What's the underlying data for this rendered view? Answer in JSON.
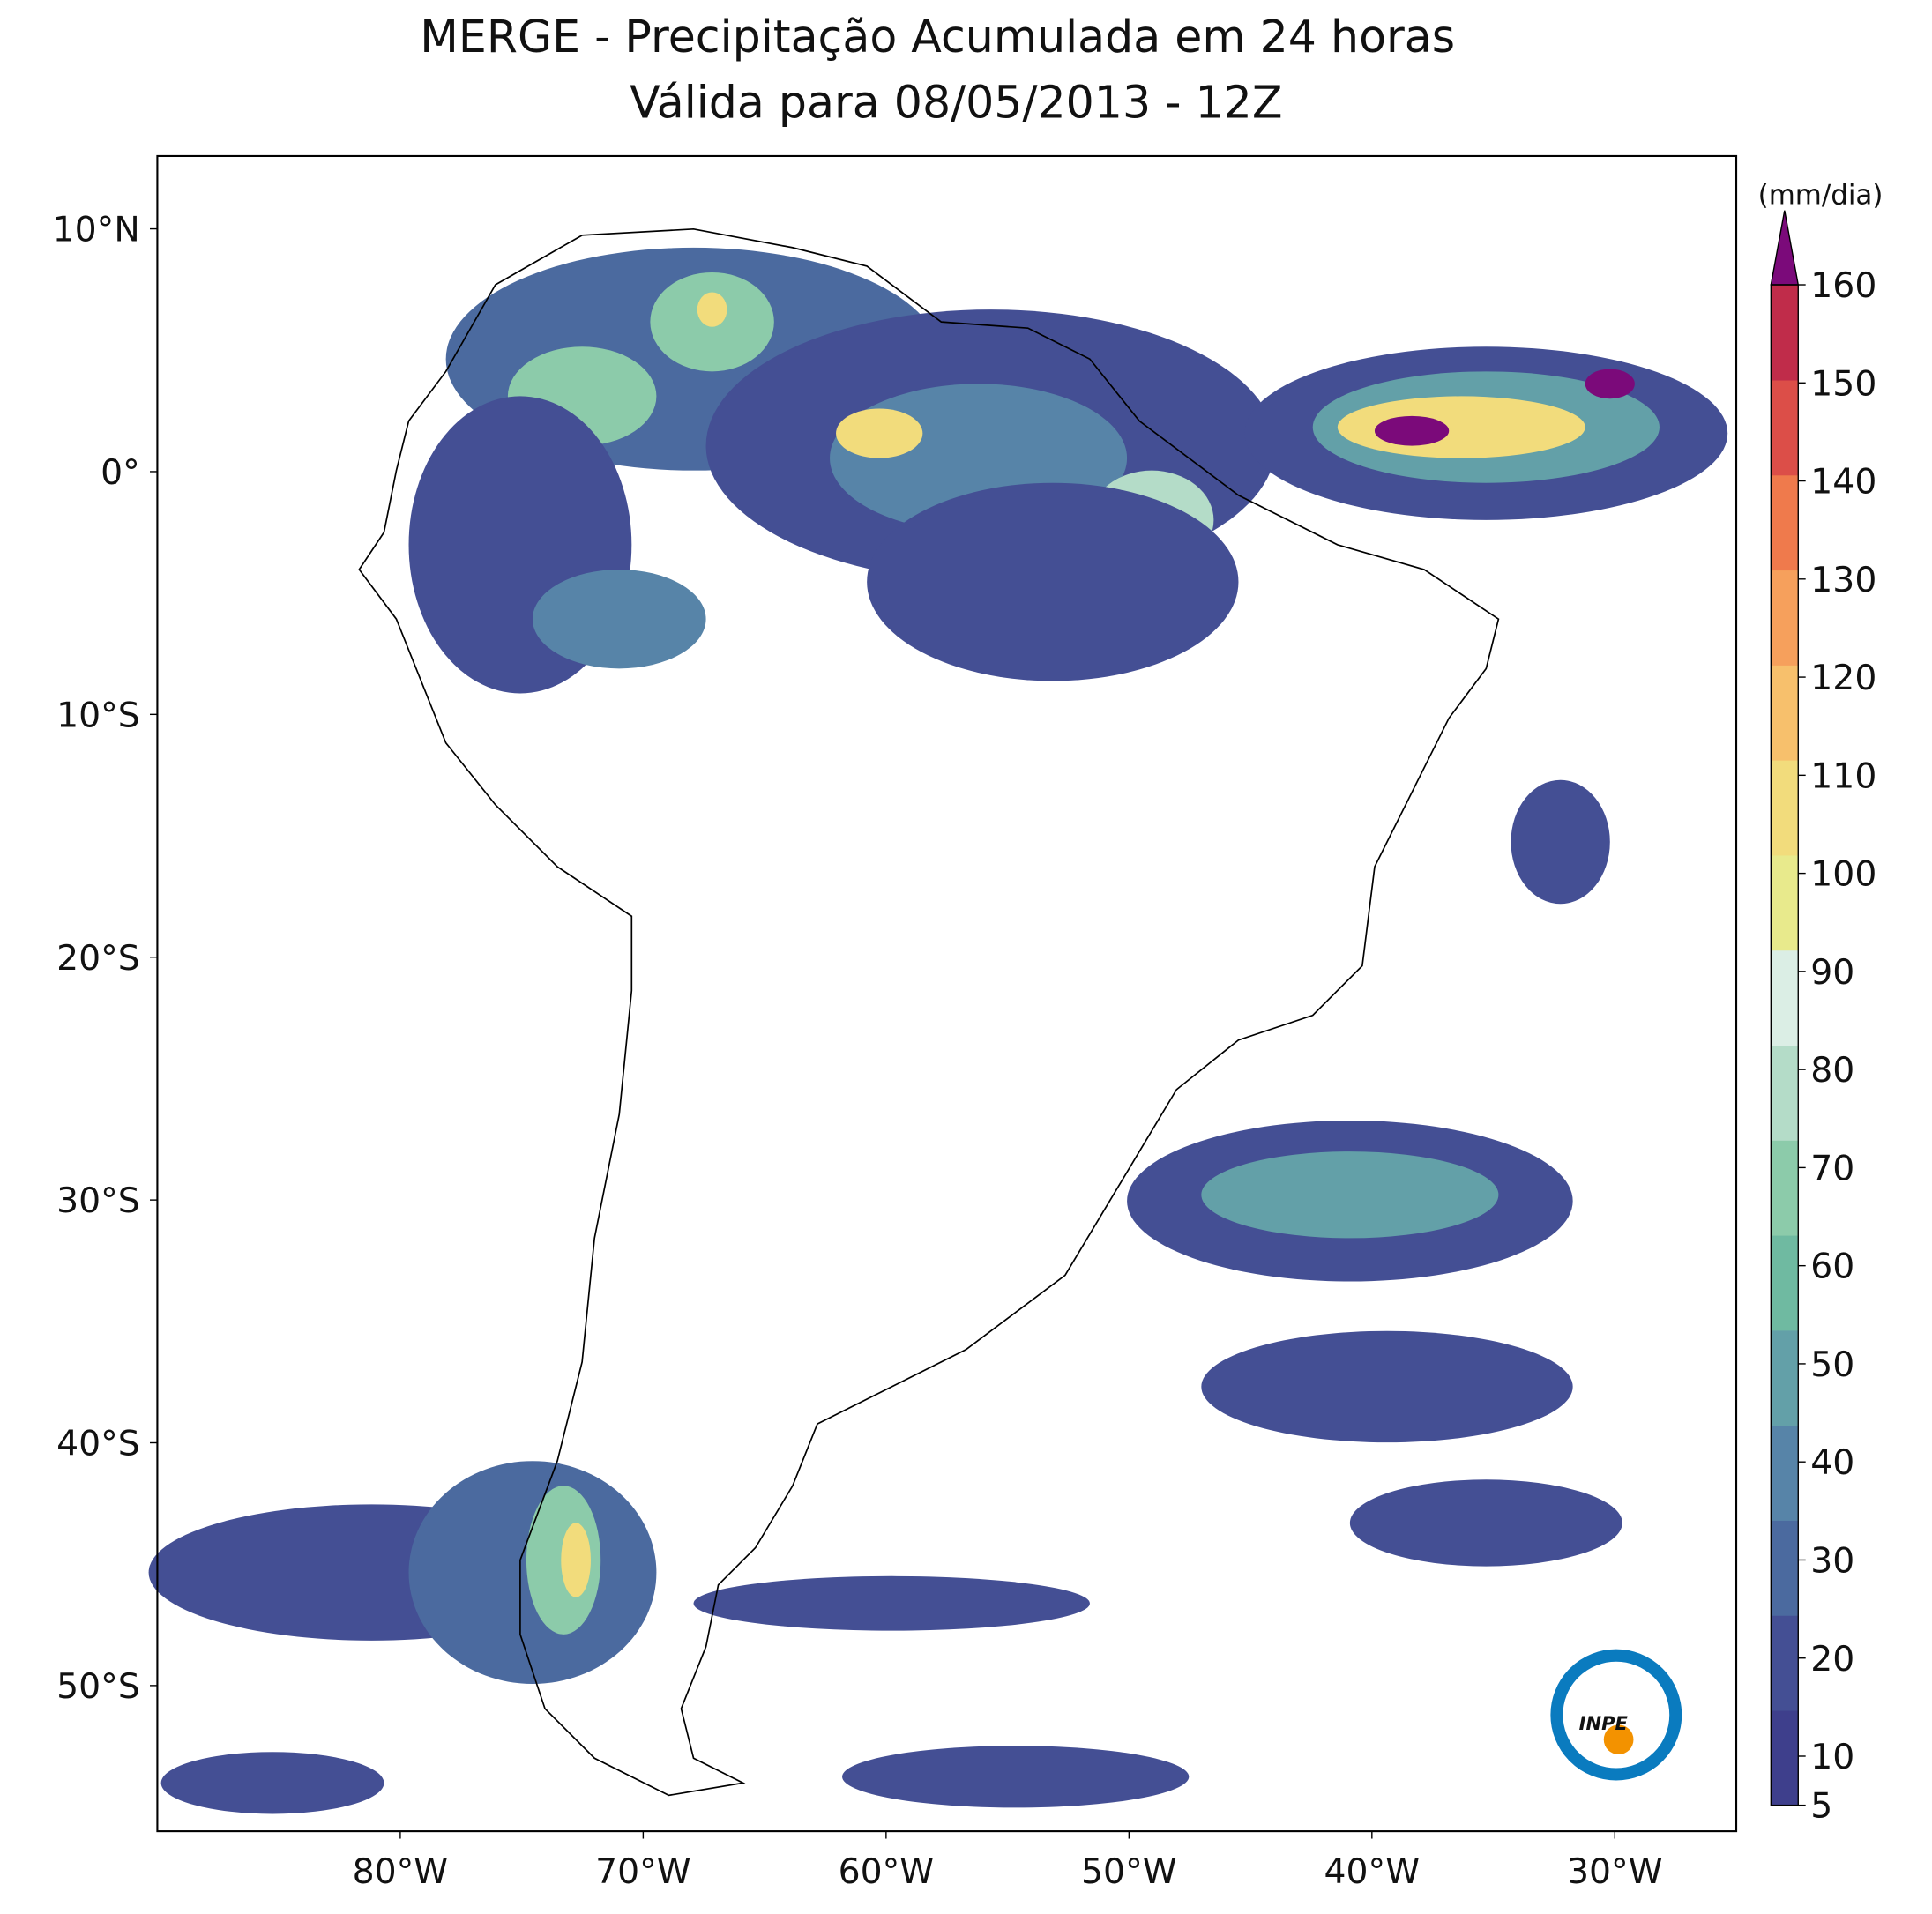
{
  "chart_data": {
    "type": "map",
    "title": "MERGE - Precipitação Acumulada em 24 horas",
    "subtitle": "Válida para 08/05/2013 - 12Z",
    "xlim": [
      -90,
      -25
    ],
    "ylim": [
      -56,
      13
    ],
    "xticks": [
      {
        "value": -80,
        "label": "80°W"
      },
      {
        "value": -70,
        "label": "70°W"
      },
      {
        "value": -60,
        "label": "60°W"
      },
      {
        "value": -50,
        "label": "50°W"
      },
      {
        "value": -40,
        "label": "40°W"
      },
      {
        "value": -30,
        "label": "30°W"
      }
    ],
    "yticks": [
      {
        "value": 10,
        "label": "10°N"
      },
      {
        "value": 0,
        "label": "0°"
      },
      {
        "value": -10,
        "label": "10°S"
      },
      {
        "value": -20,
        "label": "20°S"
      },
      {
        "value": -30,
        "label": "30°S"
      },
      {
        "value": -40,
        "label": "40°S"
      },
      {
        "value": -50,
        "label": "50°S"
      }
    ],
    "colorbar": {
      "label": "(mm/dia)",
      "lim": [
        5,
        160
      ],
      "ticks": [
        5,
        10,
        20,
        30,
        40,
        50,
        60,
        70,
        80,
        90,
        100,
        110,
        120,
        130,
        140,
        150,
        160
      ],
      "colors": [
        "#3e3f8c",
        "#444f94",
        "#4b6a9f",
        "#5784a8",
        "#63a0a8",
        "#6fbaa1",
        "#8ccbaa",
        "#b4dcc8",
        "#dbeee5",
        "#e8ea8c",
        "#f2dc7c",
        "#f7c06c",
        "#f6a05c",
        "#ef7a4c",
        "#dc4e48",
        "#c02c4a"
      ],
      "extend_color": "#7b0a7a"
    },
    "logo": "INPE"
  }
}
